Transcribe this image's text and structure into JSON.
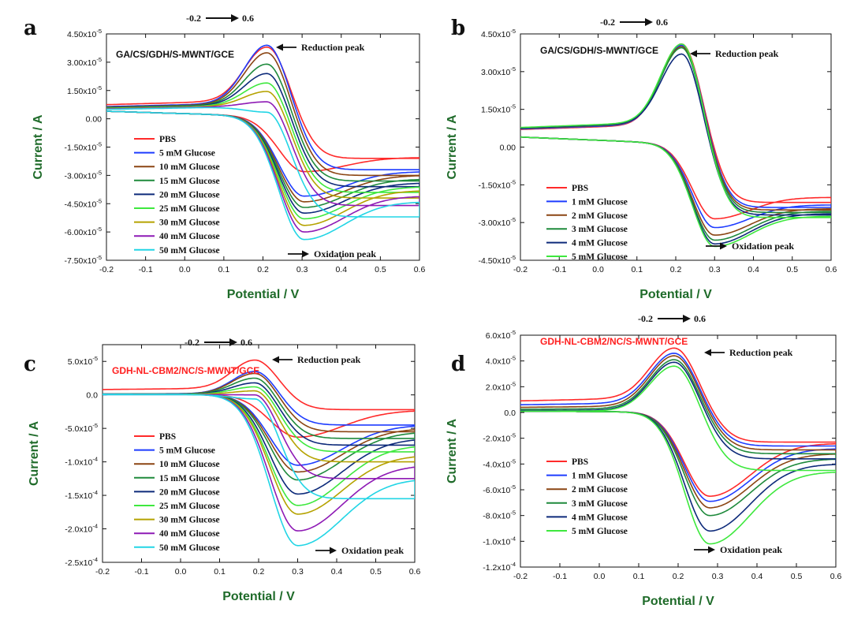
{
  "series_colors": [
    "#ff2a2a",
    "#1e3cff",
    "#8b4513",
    "#1f8a3c",
    "#0d2a7a",
    "#3ee83e",
    "#b5a200",
    "#8e1ab5",
    "#22d5e5"
  ],
  "chart_data": [
    {
      "type": "line",
      "panel": "a",
      "title": "GA/CS/GDH/S-MWNT/GCE",
      "title_color": "#111111",
      "xlabel": "Potential / V",
      "ylabel": "Current / A",
      "xlim": [
        -0.2,
        0.6
      ],
      "ylim": [
        -7.5e-05,
        4.5e-05
      ],
      "xticks": [
        -0.2,
        -0.1,
        0.0,
        0.1,
        0.2,
        0.3,
        0.4,
        0.5,
        0.6
      ],
      "xtick_labels": [
        "-0.2",
        "-0.1",
        "0.0",
        "0.1",
        "0.2",
        "0.3",
        "0.4",
        "0.5",
        "0.6"
      ],
      "yticks": [
        4.5e-05,
        3e-05,
        1.5e-05,
        0,
        -1.5e-05,
        -3e-05,
        -4.5e-05,
        -6e-05,
        -7.5e-05
      ],
      "ytick_labels": [
        {
          "base": "4.50x10",
          "exp": "-5"
        },
        {
          "base": "3.00x10",
          "exp": "-5"
        },
        {
          "base": "1.50x10",
          "exp": "-5"
        },
        {
          "base": "0.00",
          "exp": ""
        },
        {
          "base": "-1.50x10",
          "exp": "-5"
        },
        {
          "base": "-3.00x10",
          "exp": "-5"
        },
        {
          "base": "-4.50x10",
          "exp": "-5"
        },
        {
          "base": "-6.00x10",
          "exp": "-5"
        },
        {
          "base": "-7.50x10",
          "exp": "-5"
        }
      ],
      "sweep_label": {
        "from": "-0.2",
        "to": "0.6"
      },
      "annotations": {
        "reduction": "Reduction peak",
        "oxidation": "Oxidation peak"
      },
      "curve_params": {
        "anodic_start": 4e-06,
        "reduction_peak_x": 0.21,
        "reduction_width": 0.07,
        "oxidation_peak_x": 0.305,
        "oxidation_width": 0.09
      },
      "series": [
        {
          "name": "PBS",
          "upper_start": 7.5e-06,
          "upper_peak": 3.8e-05,
          "upper_end": -2.1e-05,
          "lower_peak": -2.8e-05,
          "lower_end": -2.05e-05
        },
        {
          "name": "5 mM  Glucose",
          "upper_start": 6.5e-06,
          "upper_peak": 3.9e-05,
          "upper_end": -2.7e-05,
          "lower_peak": -4.1e-05,
          "lower_end": -2.8e-05
        },
        {
          "name": "10 mM Glucose",
          "upper_start": 6.2e-06,
          "upper_peak": 3.5e-05,
          "upper_end": -3e-05,
          "lower_peak": -4.4e-05,
          "lower_end": -3e-05
        },
        {
          "name": "15 mM Glucose",
          "upper_start": 6e-06,
          "upper_peak": 2.9e-05,
          "upper_end": -3.3e-05,
          "lower_peak": -4.7e-05,
          "lower_end": -3.2e-05
        },
        {
          "name": "20 mM Glucose",
          "upper_start": 5.8e-06,
          "upper_peak": 2.4e-05,
          "upper_end": -3.6e-05,
          "lower_peak": -5e-05,
          "lower_end": -3.4e-05
        },
        {
          "name": "25 mM Glucose",
          "upper_start": 5.6e-06,
          "upper_peak": 1.9e-05,
          "upper_end": -3.9e-05,
          "lower_peak": -5.3e-05,
          "lower_end": -3.6e-05
        },
        {
          "name": "30 mM Glucose",
          "upper_start": 5.4e-06,
          "upper_peak": 1.45e-05,
          "upper_end": -4.2e-05,
          "lower_peak": -5.65e-05,
          "lower_end": -3.8e-05
        },
        {
          "name": "40 mM Glucose",
          "upper_start": 5.2e-06,
          "upper_peak": 9e-06,
          "upper_end": -4.6e-05,
          "lower_peak": -6e-05,
          "lower_end": -4.1e-05
        },
        {
          "name": "50 mM Glucose",
          "upper_start": 5e-06,
          "upper_peak": 3.5e-06,
          "upper_end": -5.2e-05,
          "lower_peak": -6.4e-05,
          "lower_end": -4.4e-05
        }
      ]
    },
    {
      "type": "line",
      "panel": "b",
      "title": "GA/CS/GDH/S-MWNT/GCE",
      "title_color": "#111111",
      "xlabel": "Potential / V",
      "ylabel": "Current / A",
      "xlim": [
        -0.2,
        0.6
      ],
      "ylim": [
        -4.5e-05,
        4.5e-05
      ],
      "xticks": [
        -0.2,
        -0.1,
        0.0,
        0.1,
        0.2,
        0.3,
        0.4,
        0.5,
        0.6
      ],
      "xtick_labels": [
        "-0.2",
        "-0.1",
        "0.0",
        "0.1",
        "0.2",
        "0.3",
        "0.4",
        "0.5",
        "0.6"
      ],
      "yticks": [
        4.5e-05,
        3e-05,
        1.5e-05,
        0,
        -1.5e-05,
        -3e-05,
        -4.5e-05
      ],
      "ytick_labels": [
        {
          "base": "4.50x10",
          "exp": "-5"
        },
        {
          "base": "3.00x10",
          "exp": "-5"
        },
        {
          "base": "1.50x10",
          "exp": "-5"
        },
        {
          "base": "0.00",
          "exp": ""
        },
        {
          "base": "-1.50x10",
          "exp": "-5"
        },
        {
          "base": "-3.00x10",
          "exp": "-5"
        },
        {
          "base": "-4.50x10",
          "exp": "-5"
        }
      ],
      "sweep_label": {
        "from": "-0.2",
        "to": "0.6"
      },
      "annotations": {
        "reduction": "Reduction peak",
        "oxidation": "Oxidation peak"
      },
      "curve_params": {
        "anodic_start": 4e-06,
        "reduction_peak_x": 0.215,
        "reduction_width": 0.065,
        "oxidation_peak_x": 0.3,
        "oxidation_width": 0.08
      },
      "series": [
        {
          "name": "PBS",
          "upper_start": 7e-06,
          "upper_peak": 4.1e-05,
          "upper_end": -2.2e-05,
          "lower_peak": -2.85e-05,
          "lower_end": -2e-05
        },
        {
          "name": "1 mM Glucose",
          "upper_start": 7.2e-06,
          "upper_peak": 4.05e-05,
          "upper_end": -2.4e-05,
          "lower_peak": -3.2e-05,
          "lower_end": -2.3e-05
        },
        {
          "name": "2 mM Glucose",
          "upper_start": 7.4e-06,
          "upper_peak": 4e-05,
          "upper_end": -2.5e-05,
          "lower_peak": -3.5e-05,
          "lower_end": -2.45e-05
        },
        {
          "name": "3 mM Glucose",
          "upper_start": 7.5e-06,
          "upper_peak": 3.95e-05,
          "upper_end": -2.6e-05,
          "lower_peak": -3.7e-05,
          "lower_end": -2.55e-05
        },
        {
          "name": "4 mM Glucose",
          "upper_start": 7.6e-06,
          "upper_peak": 3.7e-05,
          "upper_end": -2.7e-05,
          "lower_peak": -3.85e-05,
          "lower_end": -2.65e-05
        },
        {
          "name": "5 mM Glucose",
          "upper_start": 7.8e-06,
          "upper_peak": 4.1e-05,
          "upper_end": -2.8e-05,
          "lower_peak": -3.95e-05,
          "lower_end": -2.75e-05
        }
      ]
    },
    {
      "type": "line",
      "panel": "c",
      "title": "GDH-NL-CBM2/NC/S-MWNT/GCE",
      "title_color": "#ff2020",
      "xlabel": "Potential / V",
      "ylabel": "Current / A",
      "xlim": [
        -0.2,
        0.6
      ],
      "ylim": [
        -0.00025,
        7.5e-05
      ],
      "xticks": [
        -0.2,
        -0.1,
        0.0,
        0.1,
        0.2,
        0.3,
        0.4,
        0.5,
        0.6
      ],
      "xtick_labels": [
        "-0.2",
        "-0.1",
        "0.0",
        "0.1",
        "0.2",
        "0.3",
        "0.4",
        "0.5",
        "0.6"
      ],
      "yticks": [
        5e-05,
        0,
        -5e-05,
        -0.0001,
        -0.00015,
        -0.0002,
        -0.00025
      ],
      "ytick_labels": [
        {
          "base": "5.0x10",
          "exp": "-5"
        },
        {
          "base": "0.0",
          "exp": ""
        },
        {
          "base": "-5.0x10",
          "exp": "-5"
        },
        {
          "base": "-1.0x10",
          "exp": "-4"
        },
        {
          "base": "-1.5x10",
          "exp": "-4"
        },
        {
          "base": "-2.0x10",
          "exp": "-4"
        },
        {
          "base": "-2.5x10",
          "exp": "-4"
        }
      ],
      "sweep_label": {
        "from": "-0.2",
        "to": "0.6"
      },
      "annotations": {
        "reduction": "Reduction peak",
        "oxidation": "Oxidation peak"
      },
      "curve_params": {
        "anodic_start": 1e-06,
        "reduction_peak_x": 0.19,
        "reduction_width": 0.07,
        "oxidation_peak_x": 0.3,
        "oxidation_width": 0.1
      },
      "series": [
        {
          "name": "PBS",
          "upper_start": 8e-06,
          "upper_peak": 5.2e-05,
          "upper_end": -2.2e-05,
          "lower_peak": -6.3e-05,
          "lower_end": -2.3e-05
        },
        {
          "name": "5  mM Glucose",
          "upper_start": 1.5e-06,
          "upper_peak": 3.5e-05,
          "upper_end": -4.5e-05,
          "lower_peak": -0.000105,
          "lower_end": -4.5e-05
        },
        {
          "name": "10 mM Glucose",
          "upper_start": 1.3e-06,
          "upper_peak": 3.2e-05,
          "upper_end": -5.5e-05,
          "lower_peak": -0.000115,
          "lower_end": -5e-05
        },
        {
          "name": "15 mM Glucose",
          "upper_start": 1.2e-06,
          "upper_peak": 2.5e-05,
          "upper_end": -6.5e-05,
          "lower_peak": -0.000127,
          "lower_end": -5.5e-05
        },
        {
          "name": "20 mM Glucose",
          "upper_start": 1e-06,
          "upper_peak": 1.8e-05,
          "upper_end": -7.5e-05,
          "lower_peak": -0.000148,
          "lower_end": -6.5e-05
        },
        {
          "name": "25 mM Glucose",
          "upper_start": 8e-07,
          "upper_peak": 1.2e-05,
          "upper_end": -8.5e-05,
          "lower_peak": -0.000165,
          "lower_end": -7.5e-05
        },
        {
          "name": "30 mM Glucose",
          "upper_start": 6e-07,
          "upper_peak": 6e-06,
          "upper_end": -0.0001,
          "lower_peak": -0.000178,
          "lower_end": -9e-05
        },
        {
          "name": "40 mM Glucose",
          "upper_start": 4e-07,
          "upper_peak": 0.0,
          "upper_end": -0.000125,
          "lower_peak": -0.000203,
          "lower_end": -0.000105
        },
        {
          "name": "50 mM Glucose",
          "upper_start": 2e-07,
          "upper_peak": -6e-06,
          "upper_end": -0.000155,
          "lower_peak": -0.000225,
          "lower_end": -0.000125
        }
      ]
    },
    {
      "type": "line",
      "panel": "d",
      "title": "GDH-NL-CBM2/NC/S-MWNT/GCE",
      "title_color": "#ff2020",
      "xlabel": "Potential / V",
      "ylabel": "Current / A",
      "xlim": [
        -0.2,
        0.6
      ],
      "ylim": [
        -0.00012,
        6e-05
      ],
      "xticks": [
        -0.2,
        -0.1,
        0.0,
        0.1,
        0.2,
        0.3,
        0.4,
        0.5,
        0.6
      ],
      "xtick_labels": [
        "-0.2",
        "-0.1",
        "0.0",
        "0.1",
        "0.2",
        "0.3",
        "0.4",
        "0.5",
        "0.6"
      ],
      "yticks": [
        6e-05,
        4e-05,
        2e-05,
        0,
        -2e-05,
        -4e-05,
        -6e-05,
        -8e-05,
        -0.0001,
        -0.00012
      ],
      "ytick_labels": [
        {
          "base": "6.0x10",
          "exp": "-5"
        },
        {
          "base": "4.0x10",
          "exp": "-5"
        },
        {
          "base": "2.0x10",
          "exp": "-5"
        },
        {
          "base": "0.0",
          "exp": ""
        },
        {
          "base": "-2.0x10",
          "exp": "-5"
        },
        {
          "base": "-4.0x10",
          "exp": "-5"
        },
        {
          "base": "-6.0x10",
          "exp": "-5"
        },
        {
          "base": "-8.0x10",
          "exp": "-5"
        },
        {
          "base": "-1.0x10",
          "exp": "-4"
        },
        {
          "base": "-1.2x10",
          "exp": "-4"
        }
      ],
      "sweep_label": {
        "from": "-0.2",
        "to": "0.6"
      },
      "annotations": {
        "reduction": "Reduction peak",
        "oxidation": "Oxidation peak"
      },
      "curve_params": {
        "anodic_start": 1e-06,
        "reduction_peak_x": 0.19,
        "reduction_width": 0.075,
        "oxidation_peak_x": 0.28,
        "oxidation_width": 0.09
      },
      "series": [
        {
          "name": "PBS",
          "upper_start": 9e-06,
          "upper_peak": 5e-05,
          "upper_end": -2.3e-05,
          "lower_peak": -6.5e-05,
          "lower_end": -2.4e-05
        },
        {
          "name": "1 mM Glucose",
          "upper_start": 6e-06,
          "upper_peak": 4.6e-05,
          "upper_end": -2.6e-05,
          "lower_peak": -6.9e-05,
          "lower_end": -2.8e-05
        },
        {
          "name": "2 mM Glucose",
          "upper_start": 4e-06,
          "upper_peak": 4.4e-05,
          "upper_end": -2.9e-05,
          "lower_peak": -7.4e-05,
          "lower_end": -3.2e-05
        },
        {
          "name": "3 mM Glucose",
          "upper_start": 2.5e-06,
          "upper_peak": 4.1e-05,
          "upper_end": -3.2e-05,
          "lower_peak": -8e-05,
          "lower_end": -3.6e-05
        },
        {
          "name": "4 mM Glucose",
          "upper_start": 1.5e-06,
          "upper_peak": 3.9e-05,
          "upper_end": -3.6e-05,
          "lower_peak": -9.2e-05,
          "lower_end": -4e-05
        },
        {
          "name": "5 mM Glucose",
          "upper_start": 1e-06,
          "upper_peak": 3.6e-05,
          "upper_end": -4.5e-05,
          "lower_peak": -0.000102,
          "lower_end": -4.6e-05
        }
      ]
    }
  ]
}
